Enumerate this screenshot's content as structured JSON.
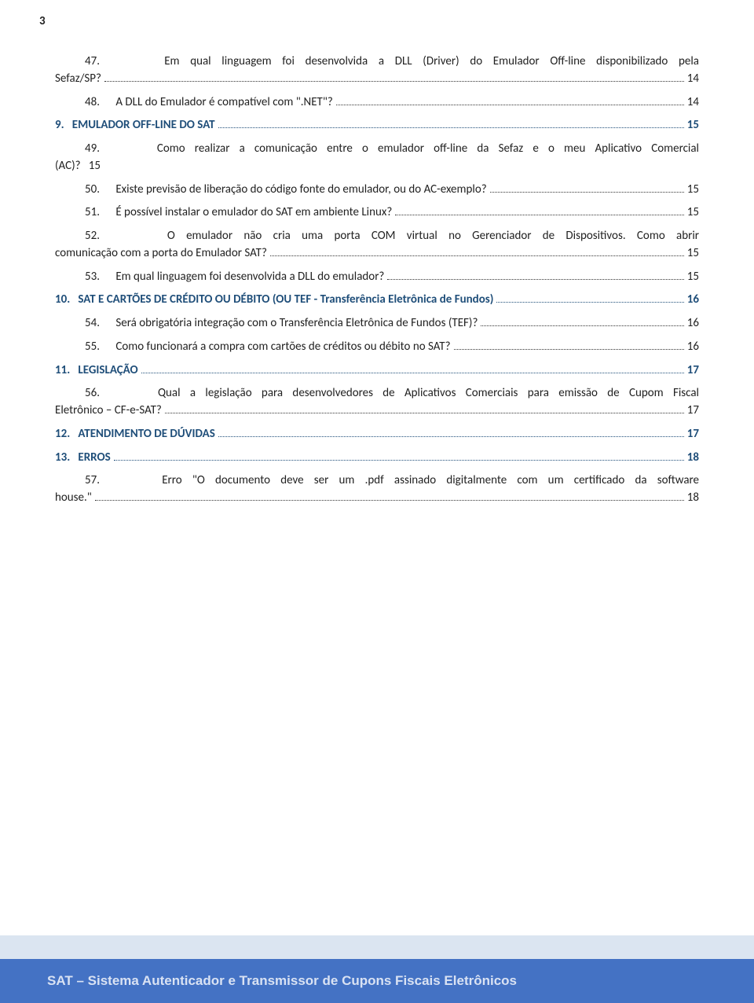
{
  "page_number": "3",
  "footer_text": "SAT – Sistema Autenticador e Transmissor de Cupons Fiscais Eletrônicos",
  "colors": {
    "section_heading": "#1f4e79",
    "body_text": "#222222",
    "footer_bg": "#4472c4",
    "footer_text": "#d9e2f3",
    "prefooter_bg": "#dbe5f1",
    "page_bg": "#ffffff"
  },
  "toc": [
    {
      "type": "sub-multi",
      "num": "47.",
      "line1": "Em  qual  linguagem  foi  desenvolvida  a  DLL  (Driver)  do  Emulador  Off-line  disponibilizado  pela",
      "line2": "Sefaz/SP?",
      "page": "14"
    },
    {
      "type": "sub",
      "num": "48.",
      "text": "A DLL do Emulador é compatível com \".NET\"?",
      "page": "14"
    },
    {
      "type": "section",
      "num": "9.",
      "text": "EMULADOR OFF-LINE DO SAT",
      "page": "15"
    },
    {
      "type": "sub-multi",
      "num": "49.",
      "line1": "Como  realizar  a  comunicação  entre  o  emulador  off-line  da  Sefaz  e  o  meu  Aplicativo  Comercial",
      "line2_prefix": "(AC)?",
      "line2_num": "15",
      "page": ""
    },
    {
      "type": "sub",
      "num": "50.",
      "text": "Existe previsão de liberação do código fonte do emulador, ou do AC-exemplo?",
      "page": "15"
    },
    {
      "type": "sub",
      "num": "51.",
      "text": "É possível instalar o emulador do SAT em ambiente Linux?",
      "page": "15"
    },
    {
      "type": "sub-multi",
      "num": "52.",
      "line1": "O  emulador  não  cria  uma  porta  COM  virtual  no  Gerenciador  de  Dispositivos.    Como  abrir",
      "line2": "comunicação com a porta do Emulador SAT?",
      "page": "15"
    },
    {
      "type": "sub",
      "num": "53.",
      "text": "Em qual linguagem foi desenvolvida a DLL do emulador?",
      "page": "15"
    },
    {
      "type": "section",
      "num": "10.",
      "text": "SAT E CARTÕES DE CRÉDITO OU DÉBITO (OU TEF - Transferência Eletrônica de Fundos)",
      "page": "16"
    },
    {
      "type": "sub",
      "num": "54.",
      "text": "Será obrigatória integração com o Transferência Eletrônica de Fundos (TEF)?",
      "page": "16"
    },
    {
      "type": "sub",
      "num": "55.",
      "text": "Como funcionará a compra com cartões de créditos ou débito no SAT?",
      "page": "16"
    },
    {
      "type": "section",
      "num": "11.",
      "text": "LEGISLAÇÃO",
      "page": "17"
    },
    {
      "type": "sub-multi",
      "num": "56.",
      "line1": "Qual  a  legislação  para  desenvolvedores  de  Aplicativos  Comerciais  para  emissão  de  Cupom  Fiscal",
      "line2": "Eletrônico – CF-e-SAT?",
      "page": "17"
    },
    {
      "type": "section",
      "num": "12.",
      "text": "ATENDIMENTO DE DÚVIDAS",
      "page": "17"
    },
    {
      "type": "section",
      "num": "13.",
      "text": "ERROS",
      "page": "18"
    },
    {
      "type": "sub-multi",
      "num": "57.",
      "line1": "Erro  \"O  documento  deve  ser  um  .pdf  assinado  digitalmente  com  um  certificado  da  software",
      "line2": "house.\"",
      "page": "18"
    }
  ]
}
